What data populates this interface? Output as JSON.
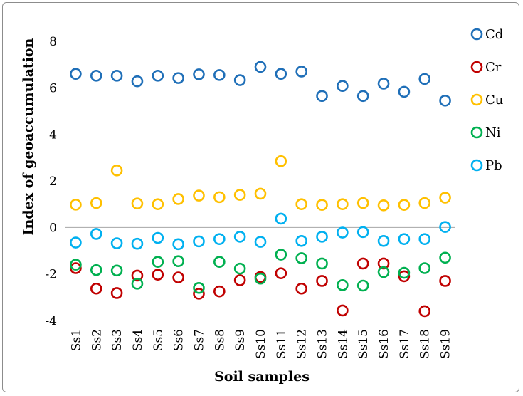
{
  "chart_data": {
    "type": "scatter",
    "title": "",
    "xlabel": "Soil samples",
    "ylabel": "Index of geoaccumulation",
    "ylim": [
      -4,
      8
    ],
    "yticks": [
      -4,
      -2,
      0,
      2,
      4,
      6,
      8
    ],
    "grid": false,
    "zero_line": true,
    "legend_position": "top-right",
    "categories": [
      "Ss1",
      "Ss2",
      "Ss3",
      "Ss4",
      "Ss5",
      "Ss6",
      "Ss7",
      "Ss8",
      "Ss9",
      "Ss10",
      "Ss11",
      "Ss12",
      "Ss13",
      "Ss14",
      "Ss15",
      "Ss16",
      "Ss17",
      "Ss18",
      "Ss19"
    ],
    "series": [
      {
        "name": "Cd",
        "color": "#1f6fb8",
        "values": [
          6.6,
          6.52,
          6.52,
          6.28,
          6.52,
          6.42,
          6.58,
          6.55,
          6.33,
          6.9,
          6.6,
          6.7,
          5.65,
          6.08,
          5.65,
          6.18,
          5.83,
          6.38,
          5.45
        ]
      },
      {
        "name": "Cr",
        "color": "#c00000",
        "values": [
          -1.75,
          -2.63,
          -2.82,
          -2.07,
          -2.03,
          -2.15,
          -2.85,
          -2.75,
          -2.27,
          -2.13,
          -1.97,
          -2.63,
          -2.3,
          -3.57,
          -1.55,
          -1.55,
          -2.1,
          -3.6,
          -2.3
        ]
      },
      {
        "name": "Cu",
        "color": "#ffc000",
        "values": [
          0.98,
          1.05,
          2.45,
          1.03,
          1.0,
          1.22,
          1.37,
          1.3,
          1.4,
          1.45,
          2.85,
          1.0,
          0.97,
          1.0,
          1.05,
          0.95,
          0.97,
          1.05,
          1.28
        ]
      },
      {
        "name": "Ni",
        "color": "#00b050",
        "values": [
          -1.6,
          -1.83,
          -1.85,
          -2.42,
          -1.48,
          -1.45,
          -2.6,
          -1.48,
          -1.77,
          -2.2,
          -1.17,
          -1.32,
          -1.55,
          -2.48,
          -2.5,
          -1.92,
          -1.95,
          -1.75,
          -1.3
        ]
      },
      {
        "name": "Pb",
        "color": "#00b0f0",
        "values": [
          -0.65,
          -0.28,
          -0.68,
          -0.7,
          -0.45,
          -0.72,
          -0.6,
          -0.5,
          -0.4,
          -0.62,
          0.38,
          -0.58,
          -0.4,
          -0.22,
          -0.2,
          -0.58,
          -0.5,
          -0.5,
          0.02
        ]
      }
    ]
  }
}
